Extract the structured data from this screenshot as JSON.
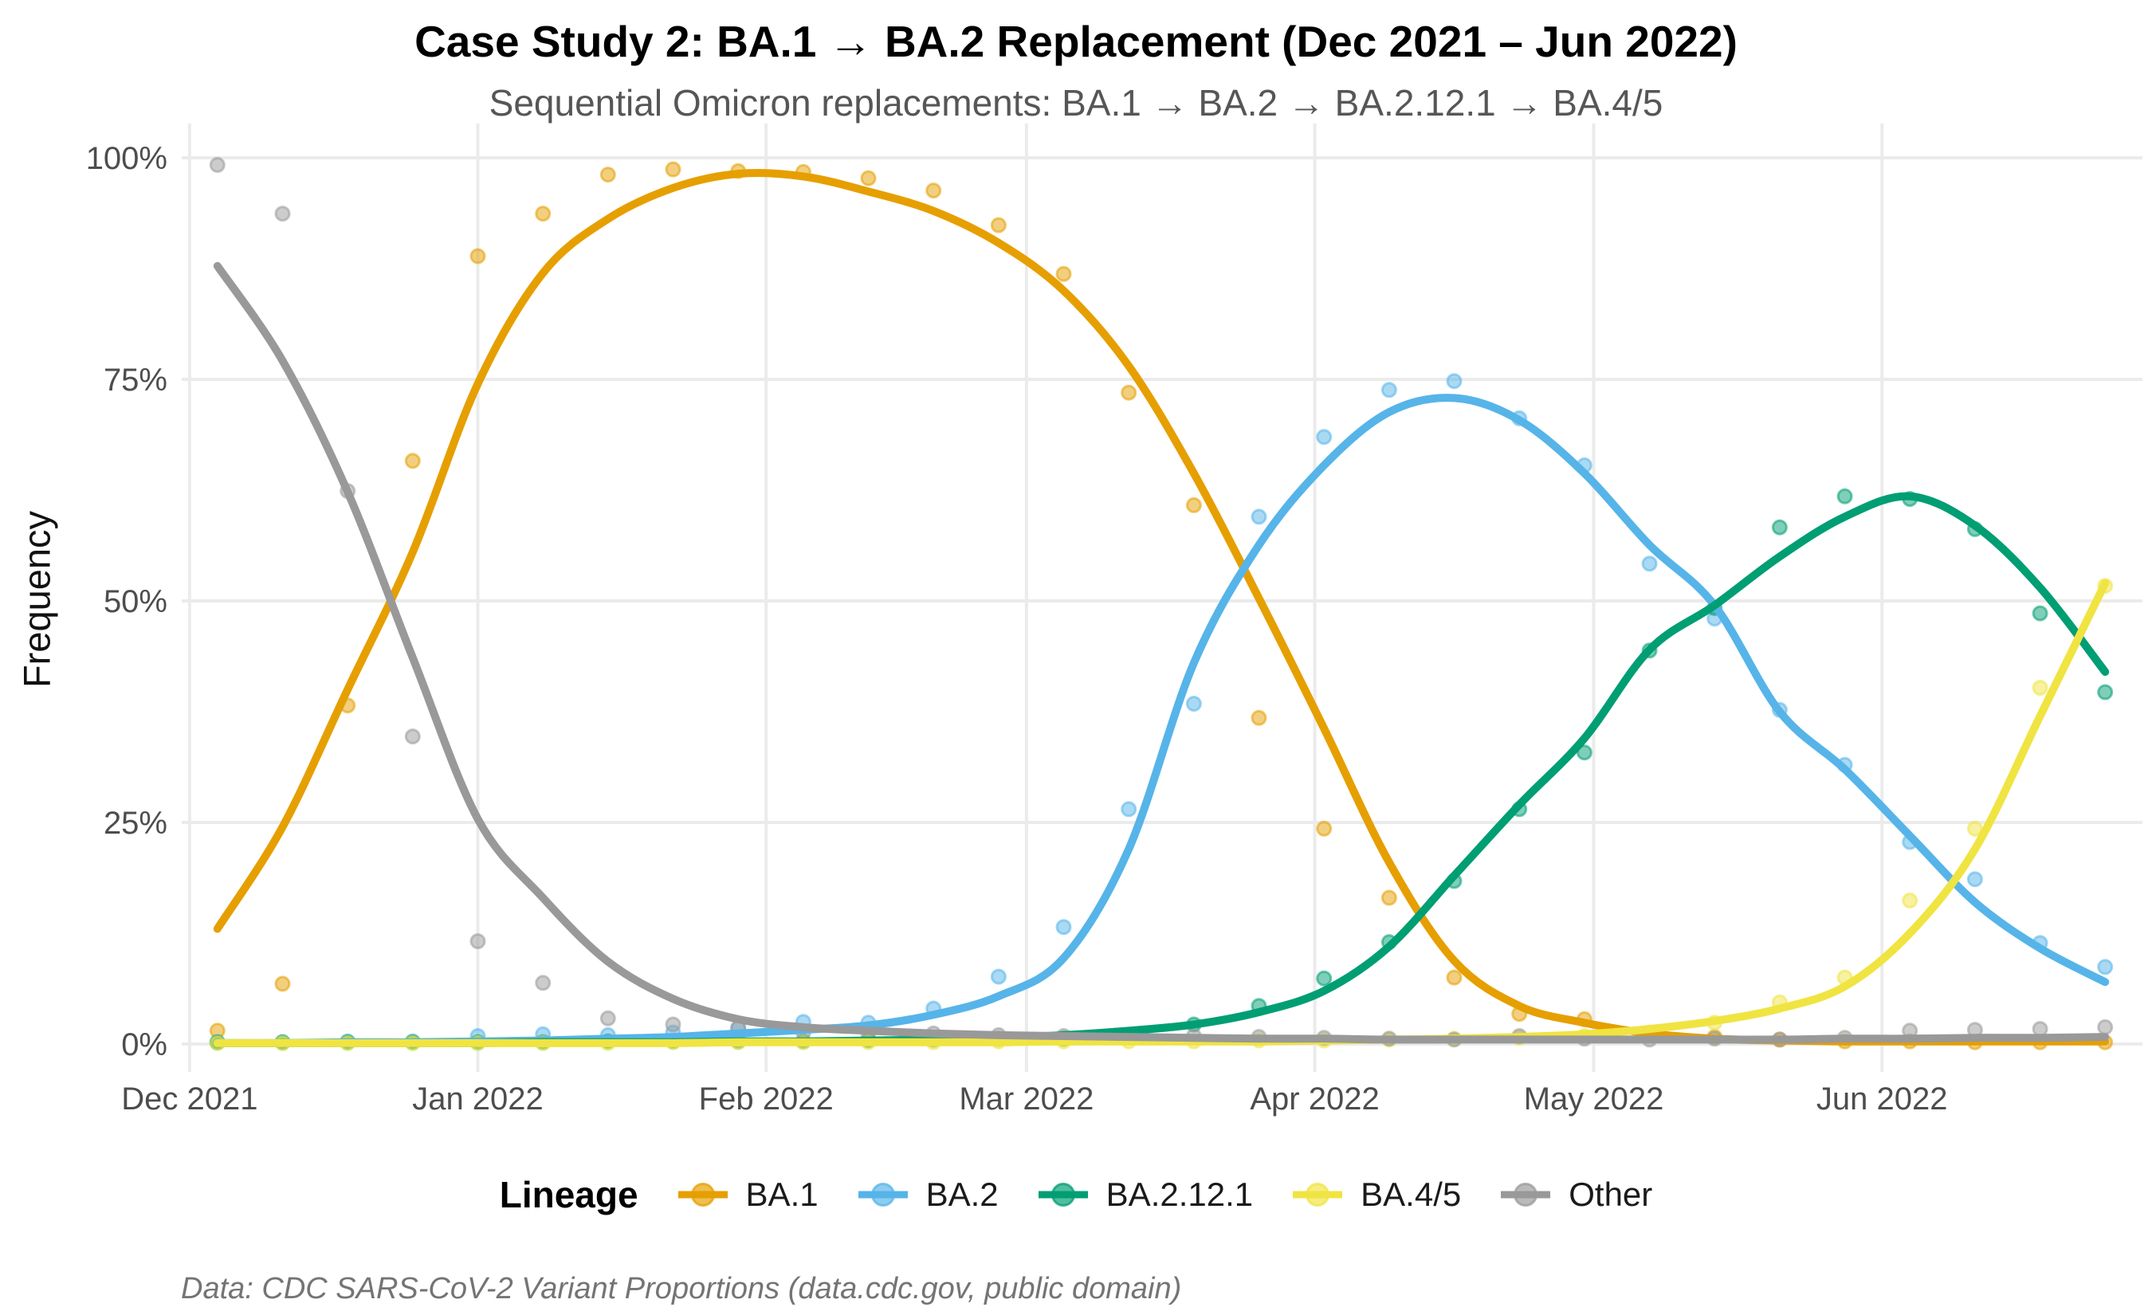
{
  "header": {
    "title": "Case Study 2: BA.1 → BA.2 Replacement (Dec 2021 – Jun 2022)",
    "subtitle": "Sequential Omicron replacements: BA.1 → BA.2 → BA.2.12.1 → BA.4/5"
  },
  "caption": "Data: CDC SARS-CoV-2 Variant Proportions (data.cdc.gov, public domain)",
  "chart_data": {
    "type": "scatter",
    "title": "Case Study 2: BA.1 → BA.2 Replacement (Dec 2021 – Jun 2022)",
    "xlabel": "",
    "ylabel": "Frequency",
    "ylim": [
      0,
      100
    ],
    "grid": "major-only",
    "legend": {
      "title": "Lineage",
      "position": "bottom"
    },
    "y_ticks": [
      {
        "value": 0,
        "label": "0%"
      },
      {
        "value": 25,
        "label": "25%"
      },
      {
        "value": 50,
        "label": "50%"
      },
      {
        "value": 75,
        "label": "75%"
      },
      {
        "value": 100,
        "label": "100%"
      }
    ],
    "x_ticks": [
      {
        "date": "2021-12-01",
        "label": "Dec 2021"
      },
      {
        "date": "2022-01-01",
        "label": "Jan 2022"
      },
      {
        "date": "2022-02-01",
        "label": "Feb 2022"
      },
      {
        "date": "2022-03-01",
        "label": "Mar 2022"
      },
      {
        "date": "2022-04-01",
        "label": "Apr 2022"
      },
      {
        "date": "2022-05-01",
        "label": "May 2022"
      },
      {
        "date": "2022-06-01",
        "label": "Jun 2022"
      }
    ],
    "weeks": [
      "2021-12-04",
      "2021-12-11",
      "2021-12-18",
      "2021-12-25",
      "2022-01-01",
      "2022-01-08",
      "2022-01-15",
      "2022-01-22",
      "2022-01-29",
      "2022-02-05",
      "2022-02-12",
      "2022-02-19",
      "2022-02-26",
      "2022-03-05",
      "2022-03-12",
      "2022-03-19",
      "2022-03-26",
      "2022-04-02",
      "2022-04-09",
      "2022-04-16",
      "2022-04-23",
      "2022-04-30",
      "2022-05-07",
      "2022-05-14",
      "2022-05-21",
      "2022-05-28",
      "2022-06-04",
      "2022-06-11",
      "2022-06-18",
      "2022-06-25"
    ],
    "series": [
      {
        "name": "BA.1",
        "color": "#E69F00",
        "points": [
          1.5,
          6.8,
          38.2,
          65.8,
          88.9,
          93.7,
          98.1,
          98.7,
          98.5,
          98.4,
          97.7,
          96.3,
          92.4,
          86.9,
          73.5,
          60.8,
          36.8,
          24.3,
          16.5,
          7.5,
          3.4,
          2.8,
          1.2,
          0.8,
          0.5,
          0.3,
          0.3,
          0.2,
          0.2,
          0.2
        ],
        "trend": [
          13,
          24.5,
          40,
          55.5,
          74.5,
          87,
          93.1,
          96.6,
          98.2,
          97.9,
          96.2,
          94,
          90.4,
          85,
          76.5,
          64.4,
          50.3,
          35.6,
          20.5,
          9.4,
          4.3,
          2.4,
          1.2,
          0.6,
          0.4,
          0.3,
          0.3,
          0.3,
          0.3,
          0.3
        ]
      },
      {
        "name": "BA.2",
        "color": "#56B4E9",
        "points": [
          0.2,
          0.2,
          0.3,
          0.3,
          0.9,
          1.1,
          1.0,
          1.3,
          1.8,
          2.5,
          2.4,
          4.0,
          7.6,
          13.2,
          26.5,
          38.4,
          59.5,
          68.5,
          73.8,
          74.8,
          70.6,
          65.3,
          54.2,
          48.0,
          37.7,
          31.5,
          22.8,
          18.6,
          11.4,
          8.7
        ],
        "trend": [
          0.1,
          0.1,
          0.2,
          0.2,
          0.3,
          0.4,
          0.6,
          0.8,
          1.2,
          1.6,
          2.1,
          3.3,
          5.4,
          9.7,
          22,
          43,
          56.3,
          65.3,
          71.3,
          72.9,
          70.4,
          64.4,
          56.3,
          49.5,
          37.5,
          31,
          23.5,
          16,
          10.8,
          7
        ]
      },
      {
        "name": "BA.2.12.1",
        "color": "#009E73",
        "points": [
          0.2,
          0.2,
          0.2,
          0.2,
          0.2,
          0.2,
          0.3,
          0.3,
          0.3,
          0.3,
          0.4,
          0.5,
          0.6,
          0.6,
          0.9,
          2.2,
          4.3,
          7.4,
          11.5,
          18.4,
          26.5,
          32.9,
          44.4,
          49.2,
          58.3,
          61.8,
          61.5,
          58.1,
          48.6,
          39.7
        ],
        "trend": [
          0.1,
          0.1,
          0.1,
          0.1,
          0.1,
          0.2,
          0.2,
          0.2,
          0.3,
          0.3,
          0.4,
          0.5,
          0.7,
          1.0,
          1.5,
          2.2,
          3.6,
          6.0,
          11,
          19,
          27,
          34.5,
          44.5,
          49.5,
          55,
          59.5,
          61.8,
          58.5,
          51.5,
          42
        ]
      },
      {
        "name": "BA.4/5",
        "color": "#F0E442",
        "points": [
          0.1,
          0.1,
          0.1,
          0.1,
          0.1,
          0.1,
          0.1,
          0.2,
          0.2,
          0.2,
          0.2,
          0.2,
          0.3,
          0.3,
          0.3,
          0.3,
          0.4,
          0.4,
          0.5,
          0.6,
          0.7,
          0.9,
          1.3,
          2.4,
          4.7,
          7.5,
          16.2,
          24.3,
          40.2,
          51.7
        ],
        "trend": [
          0.1,
          0.1,
          0.1,
          0.1,
          0.1,
          0.1,
          0.1,
          0.1,
          0.2,
          0.2,
          0.2,
          0.2,
          0.2,
          0.3,
          0.3,
          0.3,
          0.3,
          0.4,
          0.5,
          0.6,
          0.8,
          1.1,
          1.7,
          2.6,
          4.0,
          6.5,
          12.5,
          22,
          37,
          52
        ]
      },
      {
        "name": "Other",
        "color": "#999999",
        "points": [
          99.2,
          93.7,
          62.4,
          34.7,
          11.6,
          6.9,
          2.9,
          2.2,
          1.8,
          1.3,
          1.2,
          1.2,
          1.0,
          0.9,
          0.8,
          0.9,
          0.8,
          0.7,
          0.6,
          0.5,
          0.9,
          0.6,
          0.5,
          0.6,
          0.5,
          0.7,
          1.5,
          1.6,
          1.7,
          1.9
        ],
        "trend": [
          87.8,
          77.1,
          62.3,
          43.6,
          25.4,
          16.5,
          9.3,
          5.1,
          2.8,
          1.9,
          1.5,
          1.2,
          1.0,
          0.9,
          0.8,
          0.7,
          0.6,
          0.6,
          0.5,
          0.5,
          0.5,
          0.5,
          0.5,
          0.5,
          0.5,
          0.6,
          0.6,
          0.7,
          0.7,
          0.8
        ]
      }
    ],
    "style": {
      "grid_color": "#EBEBEB",
      "tick_label_color": "#4d4d4d",
      "background": "#ffffff"
    }
  }
}
